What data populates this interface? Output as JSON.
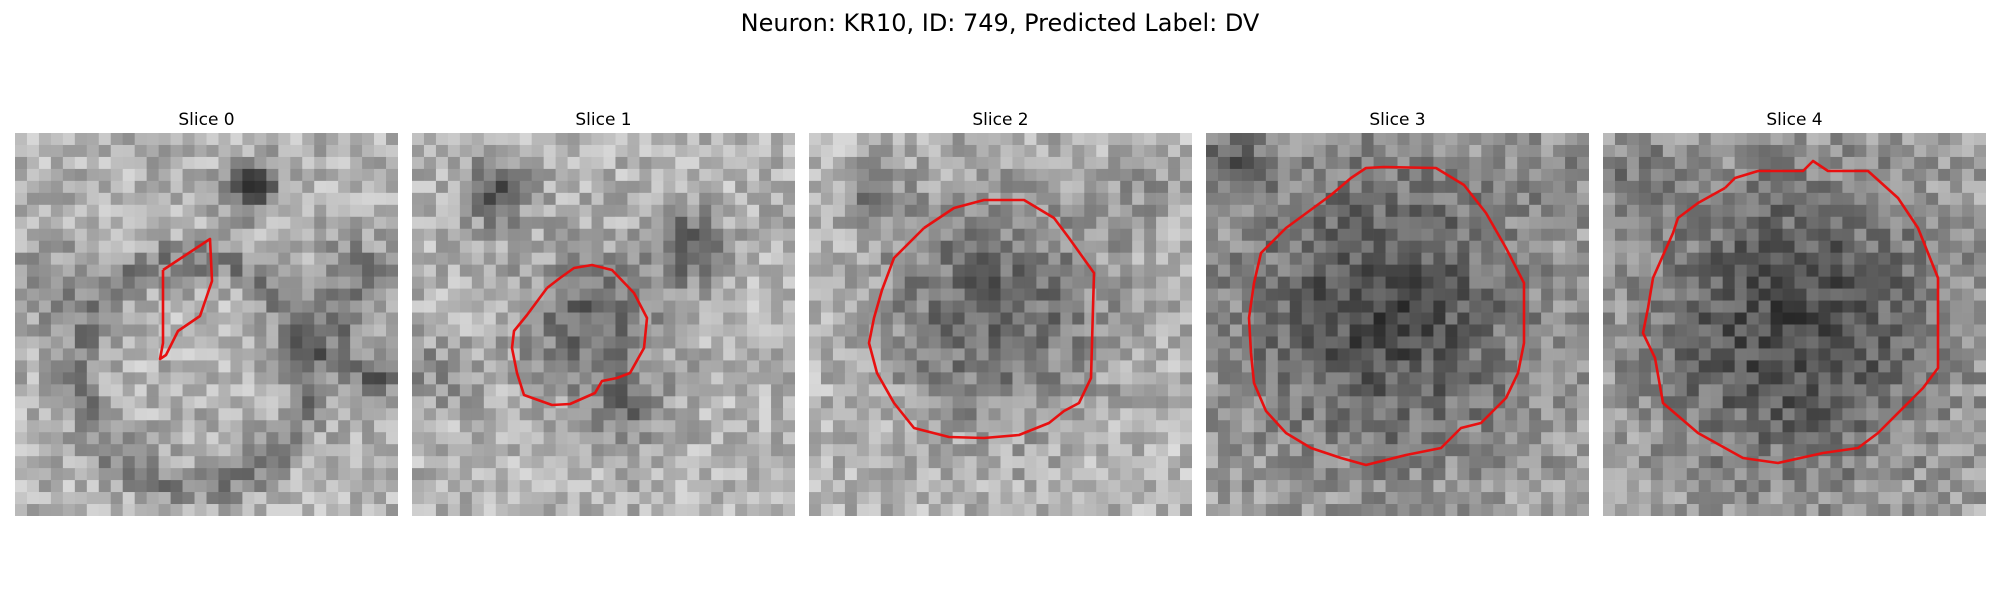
{
  "figure": {
    "title": "Neuron: KR10, ID: 749, Predicted Label: DV"
  },
  "panels": [
    {
      "title": "Slice 0",
      "contour_color": "#e81010"
    },
    {
      "title": "Slice 1",
      "contour_color": "#e81010"
    },
    {
      "title": "Slice 2",
      "contour_color": "#e81010"
    },
    {
      "title": "Slice 3",
      "contour_color": "#e81010"
    },
    {
      "title": "Slice 4",
      "contour_color": "#e81010"
    }
  ],
  "colormap": "gray"
}
